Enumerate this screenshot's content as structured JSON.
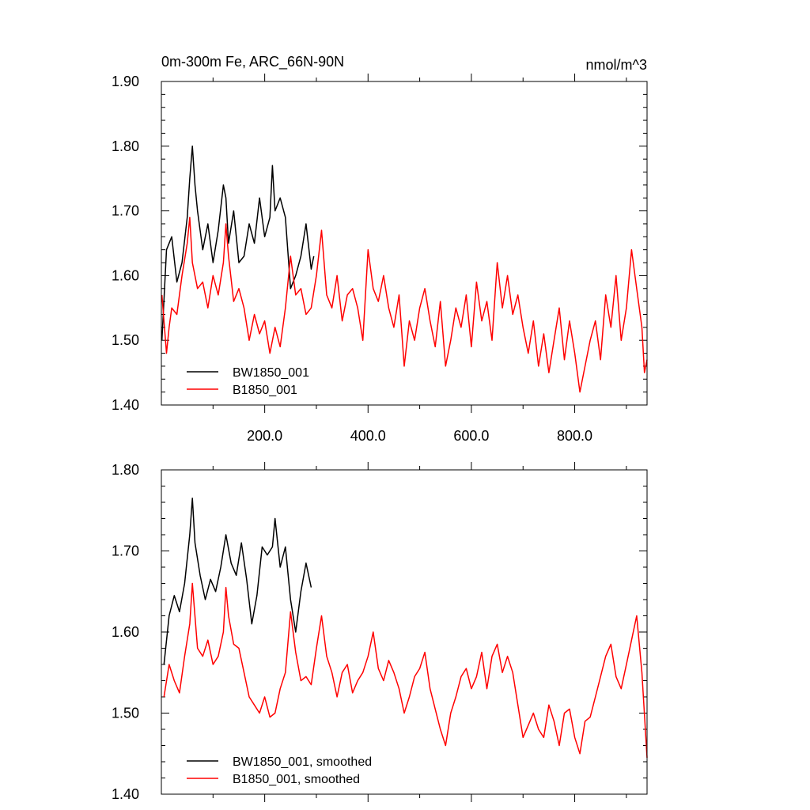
{
  "chart_data": [
    {
      "type": "line",
      "title": "0m-300m Fe, ARC_66N-90N",
      "units": "nmol/m^3",
      "xlim": [
        0,
        940
      ],
      "ylim": [
        1.4,
        1.9
      ],
      "yticks": [
        "1.40",
        "1.50",
        "1.60",
        "1.70",
        "1.80",
        "1.90"
      ],
      "xticks": [
        200,
        400,
        600,
        800
      ],
      "xtick_labels": [
        "200.0",
        "400.0",
        "600.0",
        "800.0"
      ],
      "legend_position": "bottom-left",
      "series": [
        {
          "name": "BW1850_001",
          "color": "#000000",
          "x": [
            1,
            10,
            20,
            30,
            40,
            50,
            55,
            60,
            65,
            70,
            80,
            90,
            100,
            110,
            120,
            125,
            130,
            140,
            150,
            160,
            170,
            180,
            190,
            200,
            210,
            215,
            220,
            230,
            240,
            250,
            260,
            270,
            280,
            290,
            295
          ],
          "y": [
            1.5,
            1.64,
            1.66,
            1.59,
            1.62,
            1.69,
            1.75,
            1.8,
            1.74,
            1.7,
            1.64,
            1.68,
            1.62,
            1.67,
            1.74,
            1.72,
            1.65,
            1.7,
            1.62,
            1.63,
            1.68,
            1.65,
            1.72,
            1.66,
            1.69,
            1.77,
            1.7,
            1.72,
            1.69,
            1.58,
            1.6,
            1.63,
            1.68,
            1.61,
            1.63
          ]
        },
        {
          "name": "B1850_001",
          "color": "#ff0000",
          "x": [
            1,
            10,
            15,
            20,
            30,
            40,
            50,
            55,
            60,
            70,
            80,
            90,
            100,
            110,
            120,
            125,
            130,
            140,
            150,
            160,
            170,
            180,
            190,
            200,
            210,
            220,
            230,
            240,
            250,
            260,
            270,
            280,
            290,
            300,
            310,
            320,
            330,
            340,
            350,
            360,
            370,
            380,
            390,
            400,
            410,
            420,
            430,
            440,
            450,
            460,
            470,
            480,
            490,
            500,
            510,
            520,
            530,
            540,
            550,
            560,
            570,
            580,
            590,
            600,
            610,
            620,
            630,
            640,
            650,
            660,
            670,
            680,
            690,
            700,
            710,
            720,
            730,
            740,
            750,
            760,
            770,
            780,
            790,
            800,
            810,
            820,
            830,
            840,
            850,
            860,
            870,
            880,
            890,
            900,
            910,
            920,
            930,
            935,
            940
          ],
          "y": [
            1.57,
            1.48,
            1.52,
            1.55,
            1.54,
            1.6,
            1.65,
            1.69,
            1.62,
            1.58,
            1.59,
            1.55,
            1.6,
            1.57,
            1.62,
            1.68,
            1.63,
            1.56,
            1.58,
            1.55,
            1.5,
            1.54,
            1.51,
            1.53,
            1.48,
            1.52,
            1.49,
            1.55,
            1.63,
            1.57,
            1.58,
            1.54,
            1.55,
            1.6,
            1.67,
            1.57,
            1.55,
            1.6,
            1.53,
            1.57,
            1.58,
            1.55,
            1.5,
            1.64,
            1.58,
            1.56,
            1.6,
            1.55,
            1.52,
            1.57,
            1.46,
            1.53,
            1.5,
            1.55,
            1.58,
            1.53,
            1.49,
            1.56,
            1.46,
            1.5,
            1.55,
            1.52,
            1.57,
            1.49,
            1.59,
            1.53,
            1.56,
            1.5,
            1.62,
            1.55,
            1.6,
            1.54,
            1.57,
            1.52,
            1.48,
            1.53,
            1.46,
            1.51,
            1.45,
            1.5,
            1.55,
            1.47,
            1.53,
            1.48,
            1.42,
            1.46,
            1.5,
            1.53,
            1.47,
            1.57,
            1.52,
            1.6,
            1.5,
            1.55,
            1.64,
            1.58,
            1.52,
            1.45,
            1.47
          ]
        }
      ]
    },
    {
      "type": "line",
      "xlim": [
        0,
        940
      ],
      "ylim": [
        1.4,
        1.8
      ],
      "yticks": [
        "1.40",
        "1.50",
        "1.60",
        "1.70",
        "1.80"
      ],
      "xticks": [
        200,
        400,
        600,
        800
      ],
      "legend_position": "bottom-left",
      "series": [
        {
          "name": "BW1850_001, smoothed",
          "color": "#000000",
          "x": [
            5,
            15,
            25,
            35,
            45,
            55,
            60,
            65,
            75,
            85,
            95,
            105,
            115,
            125,
            135,
            145,
            155,
            165,
            175,
            185,
            195,
            205,
            215,
            220,
            230,
            240,
            250,
            260,
            270,
            280,
            290
          ],
          "y": [
            1.56,
            1.62,
            1.645,
            1.625,
            1.66,
            1.72,
            1.765,
            1.71,
            1.67,
            1.64,
            1.665,
            1.65,
            1.68,
            1.72,
            1.685,
            1.67,
            1.71,
            1.665,
            1.61,
            1.645,
            1.705,
            1.695,
            1.705,
            1.74,
            1.68,
            1.705,
            1.64,
            1.6,
            1.65,
            1.685,
            1.655
          ]
        },
        {
          "name": "B1850_001, smoothed",
          "color": "#ff0000",
          "x": [
            5,
            15,
            25,
            35,
            45,
            55,
            60,
            70,
            80,
            90,
            100,
            110,
            120,
            125,
            130,
            140,
            150,
            160,
            170,
            180,
            190,
            200,
            210,
            220,
            230,
            240,
            250,
            260,
            270,
            280,
            290,
            300,
            310,
            320,
            330,
            340,
            350,
            360,
            370,
            380,
            390,
            400,
            410,
            420,
            430,
            440,
            450,
            460,
            470,
            480,
            490,
            500,
            510,
            520,
            530,
            540,
            550,
            560,
            570,
            580,
            590,
            600,
            610,
            620,
            630,
            640,
            650,
            660,
            670,
            680,
            690,
            700,
            710,
            720,
            730,
            740,
            750,
            760,
            770,
            780,
            790,
            800,
            810,
            820,
            830,
            840,
            850,
            860,
            870,
            880,
            890,
            900,
            910,
            920,
            930,
            940
          ],
          "y": [
            1.52,
            1.56,
            1.54,
            1.525,
            1.57,
            1.61,
            1.66,
            1.58,
            1.57,
            1.59,
            1.56,
            1.57,
            1.6,
            1.655,
            1.62,
            1.585,
            1.58,
            1.55,
            1.52,
            1.51,
            1.5,
            1.52,
            1.495,
            1.5,
            1.53,
            1.55,
            1.625,
            1.575,
            1.54,
            1.545,
            1.535,
            1.58,
            1.62,
            1.57,
            1.55,
            1.52,
            1.55,
            1.56,
            1.525,
            1.54,
            1.55,
            1.57,
            1.6,
            1.555,
            1.54,
            1.565,
            1.55,
            1.53,
            1.5,
            1.52,
            1.545,
            1.555,
            1.575,
            1.53,
            1.505,
            1.48,
            1.46,
            1.5,
            1.52,
            1.545,
            1.555,
            1.53,
            1.545,
            1.575,
            1.53,
            1.57,
            1.585,
            1.55,
            1.57,
            1.55,
            1.51,
            1.47,
            1.485,
            1.5,
            1.48,
            1.47,
            1.51,
            1.49,
            1.46,
            1.5,
            1.505,
            1.47,
            1.45,
            1.49,
            1.495,
            1.52,
            1.545,
            1.57,
            1.585,
            1.545,
            1.53,
            1.56,
            1.59,
            1.62,
            1.55,
            1.445
          ]
        }
      ]
    }
  ]
}
